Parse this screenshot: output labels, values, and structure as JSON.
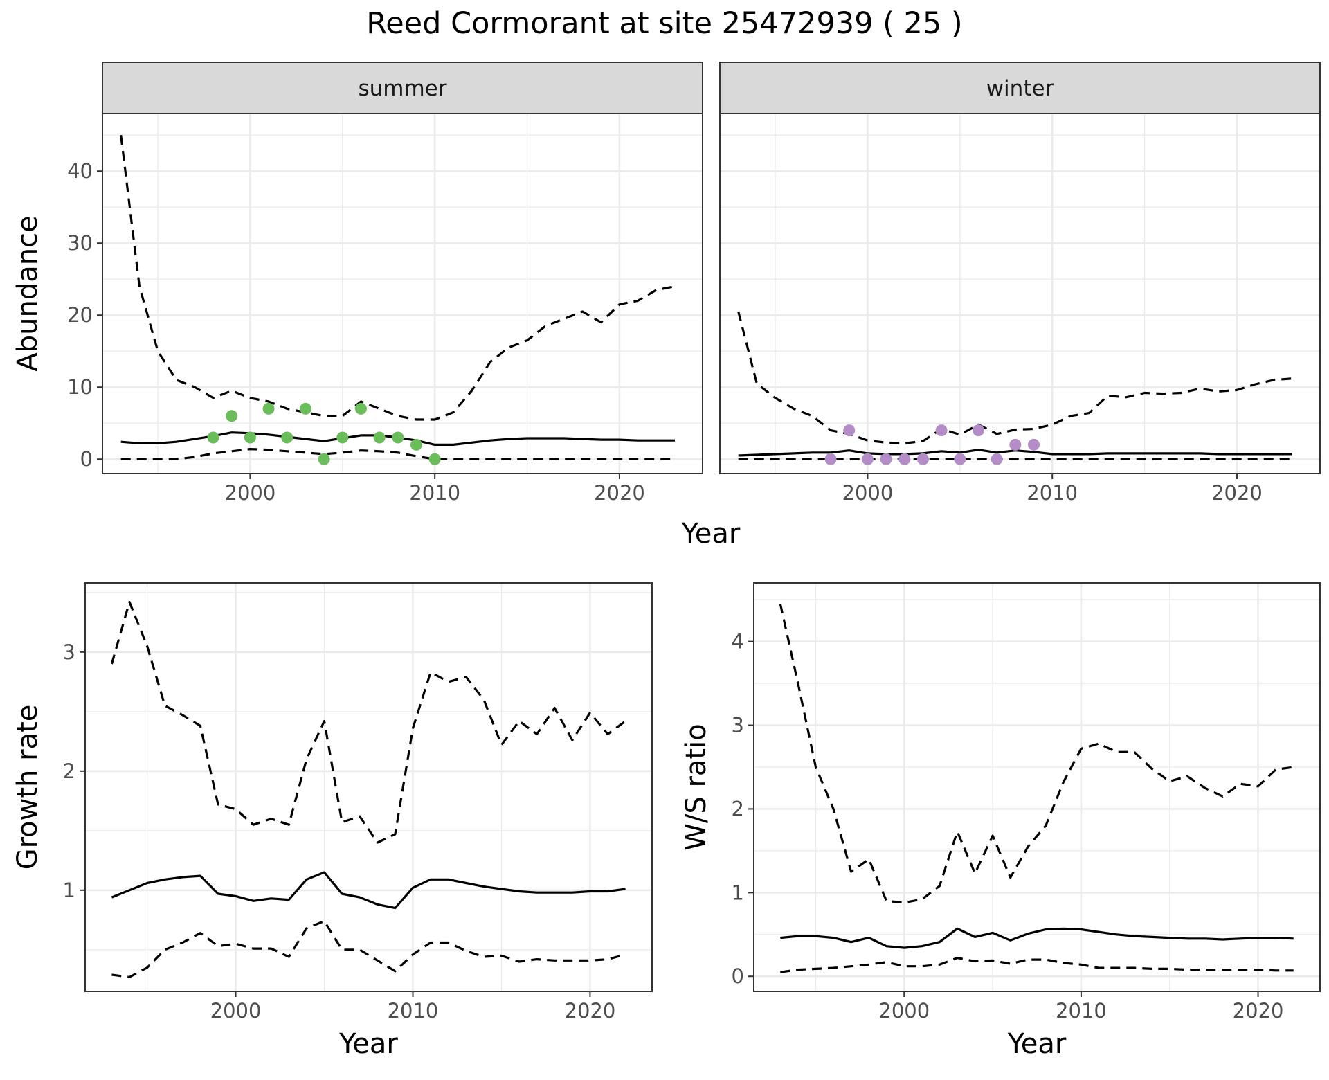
{
  "figure": {
    "title": "Reed Cormorant at site 25472939 ( 25 )"
  },
  "colors": {
    "summer_points": "#6abd5a",
    "winter_points": "#b48cc8",
    "strip_fill": "#d9d9d9",
    "grid": "#ebebeb",
    "line": "#000000"
  },
  "chart_data": [
    {
      "id": "abundance-summer",
      "type": "line",
      "facet_label": "summer",
      "ylabel": "Abundance",
      "xlim": [
        1992,
        2024.5
      ],
      "ylim": [
        -2,
        48
      ],
      "xticks": [
        2000,
        2010,
        2020
      ],
      "yticks": [
        0,
        10,
        20,
        30,
        40
      ],
      "grid": true,
      "x": [
        1993,
        1994,
        1995,
        1996,
        1997,
        1998,
        1999,
        2000,
        2001,
        2002,
        2003,
        2004,
        2005,
        2006,
        2007,
        2008,
        2009,
        2010,
        2011,
        2012,
        2013,
        2014,
        2015,
        2016,
        2017,
        2018,
        2019,
        2020,
        2021,
        2022,
        2023
      ],
      "series": [
        {
          "role": "upper",
          "dash": true,
          "values": [
            45,
            24,
            15,
            11,
            10,
            8.5,
            9.5,
            8.5,
            8,
            7,
            6.5,
            6,
            6,
            8,
            7,
            6,
            5.5,
            5.5,
            6.5,
            9.5,
            13.5,
            15.5,
            16.5,
            18.5,
            19.5,
            20.5,
            19,
            21.5,
            22,
            23.5,
            24
          ]
        },
        {
          "role": "mean",
          "dash": false,
          "values": [
            2.4,
            2.2,
            2.2,
            2.4,
            2.8,
            3.2,
            3.7,
            3.6,
            3.4,
            3.1,
            2.8,
            2.5,
            2.9,
            3.3,
            3.3,
            3.0,
            2.6,
            2.0,
            2.0,
            2.3,
            2.6,
            2.8,
            2.9,
            2.9,
            2.9,
            2.8,
            2.7,
            2.7,
            2.6,
            2.6,
            2.6
          ]
        },
        {
          "role": "lower",
          "dash": true,
          "values": [
            0,
            0,
            0,
            0,
            0.3,
            0.8,
            1.1,
            1.4,
            1.3,
            1.1,
            0.9,
            0.7,
            0.9,
            1.2,
            1.1,
            0.9,
            0.4,
            0,
            0,
            0,
            0,
            0,
            0,
            0,
            0,
            0,
            0,
            0,
            0,
            0,
            0
          ]
        }
      ],
      "points": {
        "x": [
          1998,
          1999,
          2000,
          2001,
          2002,
          2003,
          2004,
          2005,
          2006,
          2007,
          2008,
          2009,
          2010
        ],
        "y": [
          3,
          6,
          3,
          7,
          3,
          7,
          0,
          3,
          7,
          3,
          3,
          2,
          0
        ]
      }
    },
    {
      "id": "abundance-winter",
      "type": "line",
      "facet_label": "winter",
      "ylabel": "",
      "xlim": [
        1992,
        2024.5
      ],
      "ylim": [
        -2,
        48
      ],
      "xticks": [
        2000,
        2010,
        2020
      ],
      "yticks": [],
      "grid": true,
      "x": [
        1993,
        1994,
        1995,
        1996,
        1997,
        1998,
        1999,
        2000,
        2001,
        2002,
        2003,
        2004,
        2005,
        2006,
        2007,
        2008,
        2009,
        2010,
        2011,
        2012,
        2013,
        2014,
        2015,
        2016,
        2017,
        2018,
        2019,
        2020,
        2021,
        2022,
        2023
      ],
      "series": [
        {
          "role": "upper",
          "dash": true,
          "values": [
            20.5,
            10.5,
            8.5,
            7,
            6,
            4,
            3.5,
            2.6,
            2.3,
            2.2,
            2.5,
            4.2,
            3.4,
            4.8,
            3.5,
            4.1,
            4.2,
            4.8,
            6,
            6.4,
            8.8,
            8.6,
            9.2,
            9.1,
            9.2,
            9.8,
            9.4,
            9.6,
            10.4,
            11,
            11.2
          ]
        },
        {
          "role": "mean",
          "dash": false,
          "values": [
            0.5,
            0.6,
            0.7,
            0.8,
            0.9,
            0.9,
            1.2,
            0.8,
            0.7,
            0.7,
            0.8,
            1.1,
            0.9,
            1.3,
            0.9,
            1.2,
            1.0,
            0.7,
            0.7,
            0.7,
            0.8,
            0.8,
            0.8,
            0.8,
            0.8,
            0.8,
            0.7,
            0.7,
            0.7,
            0.7,
            0.7
          ]
        },
        {
          "role": "lower",
          "dash": true,
          "values": [
            0,
            0,
            0,
            0,
            0,
            0,
            0,
            0,
            0,
            0,
            0,
            0,
            0,
            0,
            0,
            0,
            0,
            0,
            0,
            0,
            0,
            0,
            0,
            0,
            0,
            0,
            0,
            0,
            0,
            0,
            0
          ]
        }
      ],
      "points": {
        "x": [
          1998,
          1999,
          2000,
          2001,
          2002,
          2003,
          2004,
          2005,
          2006,
          2007,
          2008,
          2009
        ],
        "y": [
          0,
          4,
          0,
          0,
          0,
          0,
          4,
          0,
          4,
          0,
          2,
          2
        ]
      }
    },
    {
      "id": "growth-rate",
      "type": "line",
      "xlabel": "Year",
      "ylabel": "Growth rate",
      "xlim": [
        1991.5,
        2023.5
      ],
      "ylim": [
        0.15,
        3.58
      ],
      "xticks": [
        2000,
        2010,
        2020
      ],
      "yticks": [
        1,
        2,
        3
      ],
      "grid": true,
      "x": [
        1993,
        1994,
        1995,
        1996,
        1997,
        1998,
        1999,
        2000,
        2001,
        2002,
        2003,
        2004,
        2005,
        2006,
        2007,
        2008,
        2009,
        2010,
        2011,
        2012,
        2013,
        2014,
        2015,
        2016,
        2017,
        2018,
        2019,
        2020,
        2021,
        2022
      ],
      "series": [
        {
          "role": "upper",
          "dash": true,
          "values": [
            2.9,
            3.42,
            3.05,
            2.55,
            2.47,
            2.38,
            1.72,
            1.68,
            1.55,
            1.6,
            1.55,
            2.1,
            2.42,
            1.57,
            1.62,
            1.4,
            1.47,
            2.36,
            2.83,
            2.75,
            2.79,
            2.6,
            2.22,
            2.42,
            2.31,
            2.53,
            2.26,
            2.49,
            2.31,
            2.42
          ]
        },
        {
          "role": "mean",
          "dash": false,
          "values": [
            0.94,
            1.0,
            1.06,
            1.09,
            1.11,
            1.12,
            0.97,
            0.95,
            0.91,
            0.93,
            0.92,
            1.09,
            1.15,
            0.97,
            0.94,
            0.88,
            0.85,
            1.02,
            1.09,
            1.09,
            1.06,
            1.03,
            1.01,
            0.99,
            0.98,
            0.98,
            0.98,
            0.99,
            0.99,
            1.01
          ]
        },
        {
          "role": "lower",
          "dash": true,
          "values": [
            0.29,
            0.27,
            0.35,
            0.5,
            0.56,
            0.64,
            0.53,
            0.55,
            0.51,
            0.51,
            0.44,
            0.68,
            0.74,
            0.5,
            0.5,
            0.41,
            0.32,
            0.46,
            0.56,
            0.56,
            0.49,
            0.44,
            0.45,
            0.4,
            0.42,
            0.41,
            0.41,
            0.41,
            0.42,
            0.46
          ]
        }
      ]
    },
    {
      "id": "ws-ratio",
      "type": "line",
      "xlabel": "Year",
      "ylabel": "W/S ratio",
      "xlim": [
        1991.5,
        2023.5
      ],
      "ylim": [
        -0.18,
        4.7
      ],
      "xticks": [
        2000,
        2010,
        2020
      ],
      "yticks": [
        0,
        1,
        2,
        3,
        4
      ],
      "grid": true,
      "x": [
        1993,
        1994,
        1995,
        1996,
        1997,
        1998,
        1999,
        2000,
        2001,
        2002,
        2003,
        2004,
        2005,
        2006,
        2007,
        2008,
        2009,
        2010,
        2011,
        2012,
        2013,
        2014,
        2015,
        2016,
        2017,
        2018,
        2019,
        2020,
        2021,
        2022
      ],
      "series": [
        {
          "role": "upper",
          "dash": true,
          "values": [
            4.45,
            3.5,
            2.5,
            2.0,
            1.25,
            1.4,
            0.9,
            0.88,
            0.92,
            1.08,
            1.73,
            1.23,
            1.68,
            1.18,
            1.55,
            1.8,
            2.32,
            2.72,
            2.78,
            2.68,
            2.68,
            2.48,
            2.33,
            2.39,
            2.25,
            2.15,
            2.3,
            2.27,
            2.47,
            2.5
          ]
        },
        {
          "role": "mean",
          "dash": false,
          "values": [
            0.46,
            0.48,
            0.48,
            0.46,
            0.41,
            0.46,
            0.36,
            0.34,
            0.36,
            0.41,
            0.57,
            0.47,
            0.52,
            0.43,
            0.51,
            0.56,
            0.57,
            0.56,
            0.53,
            0.5,
            0.48,
            0.47,
            0.46,
            0.45,
            0.45,
            0.44,
            0.45,
            0.46,
            0.46,
            0.45
          ]
        },
        {
          "role": "lower",
          "dash": true,
          "values": [
            0.05,
            0.08,
            0.09,
            0.1,
            0.12,
            0.14,
            0.17,
            0.12,
            0.12,
            0.14,
            0.22,
            0.18,
            0.19,
            0.15,
            0.2,
            0.2,
            0.16,
            0.14,
            0.1,
            0.1,
            0.1,
            0.09,
            0.09,
            0.08,
            0.08,
            0.08,
            0.08,
            0.08,
            0.07,
            0.07
          ]
        }
      ]
    }
  ],
  "shared": {
    "top_xlabel": "Year"
  }
}
